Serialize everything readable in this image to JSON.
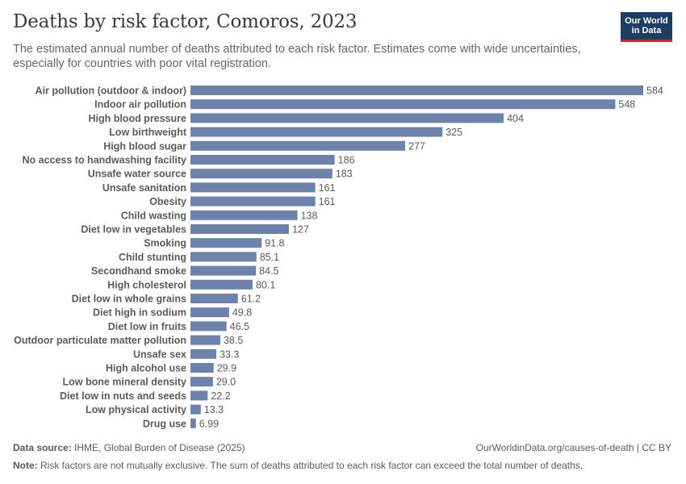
{
  "header": {
    "title": "Deaths by risk factor, Comoros, 2023",
    "subtitle": "The estimated annual number of deaths attributed to each risk factor. Estimates come with wide uncertainties, especially for countries with poor vital registration.",
    "logo_line1": "Our World",
    "logo_line2": "in Data"
  },
  "footer": {
    "source_label": "Data source:",
    "source_text": "IHME, Global Burden of Disease (2025)",
    "url": "OurWorldinData.org/causes-of-death | CC BY",
    "note_label": "Note:",
    "note_text": "Risk factors are not mutually exclusive. The sum of deaths attributed to each risk factor can exceed the total number of deaths."
  },
  "colors": {
    "bar": "#6d82ab"
  },
  "chart_data": {
    "type": "bar",
    "orientation": "horizontal",
    "categories": [
      "Air pollution (outdoor & indoor)",
      "Indoor air pollution",
      "High blood pressure",
      "Low birthweight",
      "High blood sugar",
      "No access to handwashing facility",
      "Unsafe water source",
      "Unsafe sanitation",
      "Obesity",
      "Child wasting",
      "Diet low in vegetables",
      "Smoking",
      "Child stunting",
      "Secondhand smoke",
      "High cholesterol",
      "Diet low in whole grains",
      "Diet high in sodium",
      "Diet low in fruits",
      "Outdoor particulate matter pollution",
      "Unsafe sex",
      "High alcohol use",
      "Low bone mineral density",
      "Diet low in nuts and seeds",
      "Low physical activity",
      "Drug use"
    ],
    "values": [
      584,
      548,
      404,
      325,
      277,
      186,
      183,
      161,
      161,
      138,
      127,
      91.8,
      85.1,
      84.5,
      80.1,
      61.2,
      49.8,
      46.5,
      38.5,
      33.3,
      29.9,
      29.0,
      22.2,
      13.3,
      6.99
    ],
    "value_labels": [
      "584",
      "548",
      "404",
      "325",
      "277",
      "186",
      "183",
      "161",
      "161",
      "138",
      "127",
      "91.8",
      "85.1",
      "84.5",
      "80.1",
      "61.2",
      "49.8",
      "46.5",
      "38.5",
      "33.3",
      "29.9",
      "29.0",
      "22.2",
      "13.3",
      "6.99"
    ],
    "title": "Deaths by risk factor, Comoros, 2023",
    "xlabel": "",
    "ylabel": "",
    "xlim": [
      0,
      584
    ],
    "grid": false,
    "legend": "none"
  }
}
